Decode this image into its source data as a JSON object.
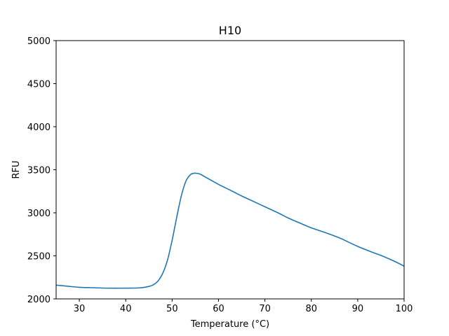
{
  "chart_data": {
    "type": "line",
    "title": "H10",
    "xlabel": "Temperature (°C)",
    "ylabel": "RFU",
    "xlim": [
      25,
      100
    ],
    "ylim": [
      2000,
      5000
    ],
    "xticks": [
      30,
      40,
      50,
      60,
      70,
      80,
      90,
      100
    ],
    "yticks": [
      2000,
      2500,
      3000,
      3500,
      4000,
      4500,
      5000
    ],
    "grid": false,
    "legend": "none",
    "line_color": "#1f77b4",
    "series": [
      {
        "x": [
          25,
          27,
          30,
          33,
          36,
          40,
          43,
          45,
          46,
          47,
          48,
          49,
          50,
          51,
          52,
          53,
          54,
          55,
          56,
          57,
          58,
          60,
          63,
          65,
          67,
          70,
          73,
          75,
          78,
          80,
          83,
          86,
          88,
          90,
          93,
          95,
          98,
          100
        ],
        "y": [
          2160,
          2150,
          2135,
          2130,
          2125,
          2125,
          2128,
          2145,
          2165,
          2210,
          2300,
          2450,
          2680,
          2950,
          3200,
          3370,
          3445,
          3460,
          3450,
          3420,
          3390,
          3330,
          3250,
          3195,
          3145,
          3070,
          2995,
          2940,
          2870,
          2825,
          2770,
          2710,
          2660,
          2610,
          2545,
          2505,
          2435,
          2380
        ]
      }
    ]
  }
}
